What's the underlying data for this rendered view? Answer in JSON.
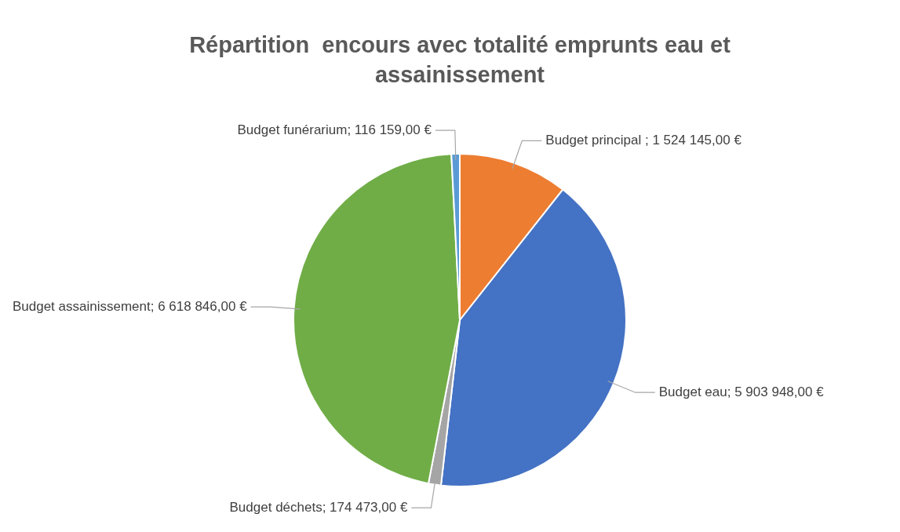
{
  "chart_data": {
    "type": "pie",
    "title": "Répartition  encours avec totalité emprunts eau et assainissement",
    "categories": [
      "Budget principal ",
      "Budget eau",
      "Budget déchets",
      "Budget assainissement",
      "Budget funérarium"
    ],
    "values": [
      1524145,
      5903948,
      174473,
      6618846,
      116159
    ],
    "colors": [
      "#ed7d31",
      "#4472c4",
      "#a5a5a5",
      "#70ad47",
      "#5b9bd5"
    ],
    "value_labels": [
      "1 524 145,00 €",
      "5 903 948,00 €",
      "174 473,00 €",
      "6 618 846,00 €",
      "116 159,00 €"
    ]
  }
}
